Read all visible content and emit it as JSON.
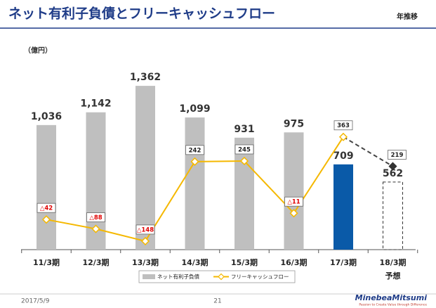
{
  "header": {
    "title": "ネット有利子負債とフリーキャッシュフロー",
    "tag": "年推移"
  },
  "chart_data": {
    "type": "bar-line",
    "unit": "（億円）",
    "categories": [
      "11/3期",
      "12/3期",
      "13/3期",
      "14/3期",
      "15/3期",
      "16/3期",
      "17/3期",
      "18/3期"
    ],
    "category_notes": [
      null,
      null,
      null,
      null,
      null,
      null,
      null,
      "予想"
    ],
    "series": [
      {
        "name": "ネット有利子負債",
        "color": "#bfbfbf",
        "colors": [
          "#bfbfbf",
          "#bfbfbf",
          "#bfbfbf",
          "#bfbfbf",
          "#bfbfbf",
          "#bfbfbf",
          "#0a5aa8",
          "#bfbfbf"
        ],
        "values": [
          1036,
          1142,
          1362,
          1099,
          931,
          975,
          709,
          562
        ],
        "value_labels": [
          "1,036",
          "1,142",
          "1,362",
          "1,099",
          "931",
          "975",
          "709",
          "562"
        ]
      },
      {
        "name": "フリーキャッシュフロー",
        "color": "#f5b800",
        "forecast_color": "#333333",
        "values": [
          -42,
          -88,
          -148,
          242,
          245,
          -11,
          363,
          219
        ],
        "value_labels": [
          "△42",
          "△88",
          "△148",
          "242",
          "245",
          "△11",
          "363",
          "219"
        ]
      }
    ]
  },
  "footer": {
    "date": "2017/5/9",
    "page": "21",
    "logo": "MinebeaMitsumi",
    "slogan": "Passion to Create Value through Difference"
  }
}
